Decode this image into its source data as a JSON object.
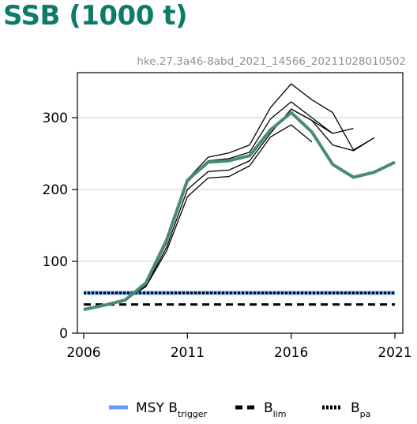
{
  "chart_data": {
    "type": "line",
    "title": "SSB (1000 t)",
    "subtitle": "hke.27.3a46-8abd_2021_14566_20211028010502",
    "xlim": [
      2006,
      2021
    ],
    "ylim": [
      0,
      350
    ],
    "xticks": [
      2006,
      2011,
      2016,
      2021
    ],
    "yticks": [
      0,
      100,
      200,
      300
    ],
    "grid": "horizontal",
    "series": [
      {
        "role": "main",
        "color": "#4a8a7a",
        "x": [
          2006,
          2007,
          2008,
          2009,
          2010,
          2011,
          2012,
          2013,
          2014,
          2015,
          2016,
          2017,
          2018,
          2019,
          2020,
          2021
        ],
        "y": [
          33,
          39,
          46,
          70,
          130,
          213,
          238,
          240,
          247,
          283,
          307,
          280,
          235,
          217,
          224,
          238
        ]
      },
      {
        "role": "retro",
        "color": "#000000",
        "x": [
          2006,
          2007,
          2008,
          2009,
          2010,
          2011,
          2012,
          2013,
          2014,
          2015,
          2016,
          2017
        ],
        "y": [
          33,
          39,
          46,
          65,
          115,
          190,
          216,
          218,
          233,
          273,
          290,
          266
        ]
      },
      {
        "role": "retro",
        "color": "#000000",
        "x": [
          2006,
          2007,
          2008,
          2009,
          2010,
          2011,
          2012,
          2013,
          2014,
          2015,
          2016,
          2017,
          2018
        ],
        "y": [
          33,
          39,
          46,
          66,
          120,
          200,
          225,
          227,
          240,
          278,
          312,
          296,
          278
        ]
      },
      {
        "role": "retro",
        "color": "#000000",
        "x": [
          2006,
          2007,
          2008,
          2009,
          2010,
          2011,
          2012,
          2013,
          2014,
          2015,
          2016,
          2017,
          2018,
          2019
        ],
        "y": [
          33,
          39,
          46,
          68,
          126,
          210,
          240,
          243,
          252,
          298,
          322,
          300,
          278,
          285
        ]
      },
      {
        "role": "retro",
        "color": "#000000",
        "x": [
          2006,
          2007,
          2008,
          2009,
          2010,
          2011,
          2012,
          2013,
          2014,
          2015,
          2016,
          2017,
          2018,
          2019,
          2020
        ],
        "y": [
          33,
          39,
          46,
          69,
          128,
          214,
          245,
          251,
          262,
          314,
          347,
          325,
          307,
          255,
          272
        ]
      },
      {
        "role": "retro",
        "color": "#000000",
        "x": [
          2016,
          2017,
          2018,
          2019,
          2020
        ],
        "y": [
          312,
          296,
          262,
          254,
          272
        ]
      }
    ],
    "reference_lines": [
      {
        "name": "MSY Btrigger",
        "y": 56,
        "color": "#6a9cf0",
        "style": "solid"
      },
      {
        "name": "Bpa",
        "y": 56,
        "color": "#000000",
        "style": "dotted"
      },
      {
        "name": "Blim",
        "y": 40,
        "color": "#000000",
        "style": "dashed"
      }
    ]
  },
  "legend": [
    {
      "base": "MSY B",
      "sub": "trigger"
    },
    {
      "base": "B",
      "sub": "lim"
    },
    {
      "base": "B",
      "sub": "pa"
    }
  ]
}
